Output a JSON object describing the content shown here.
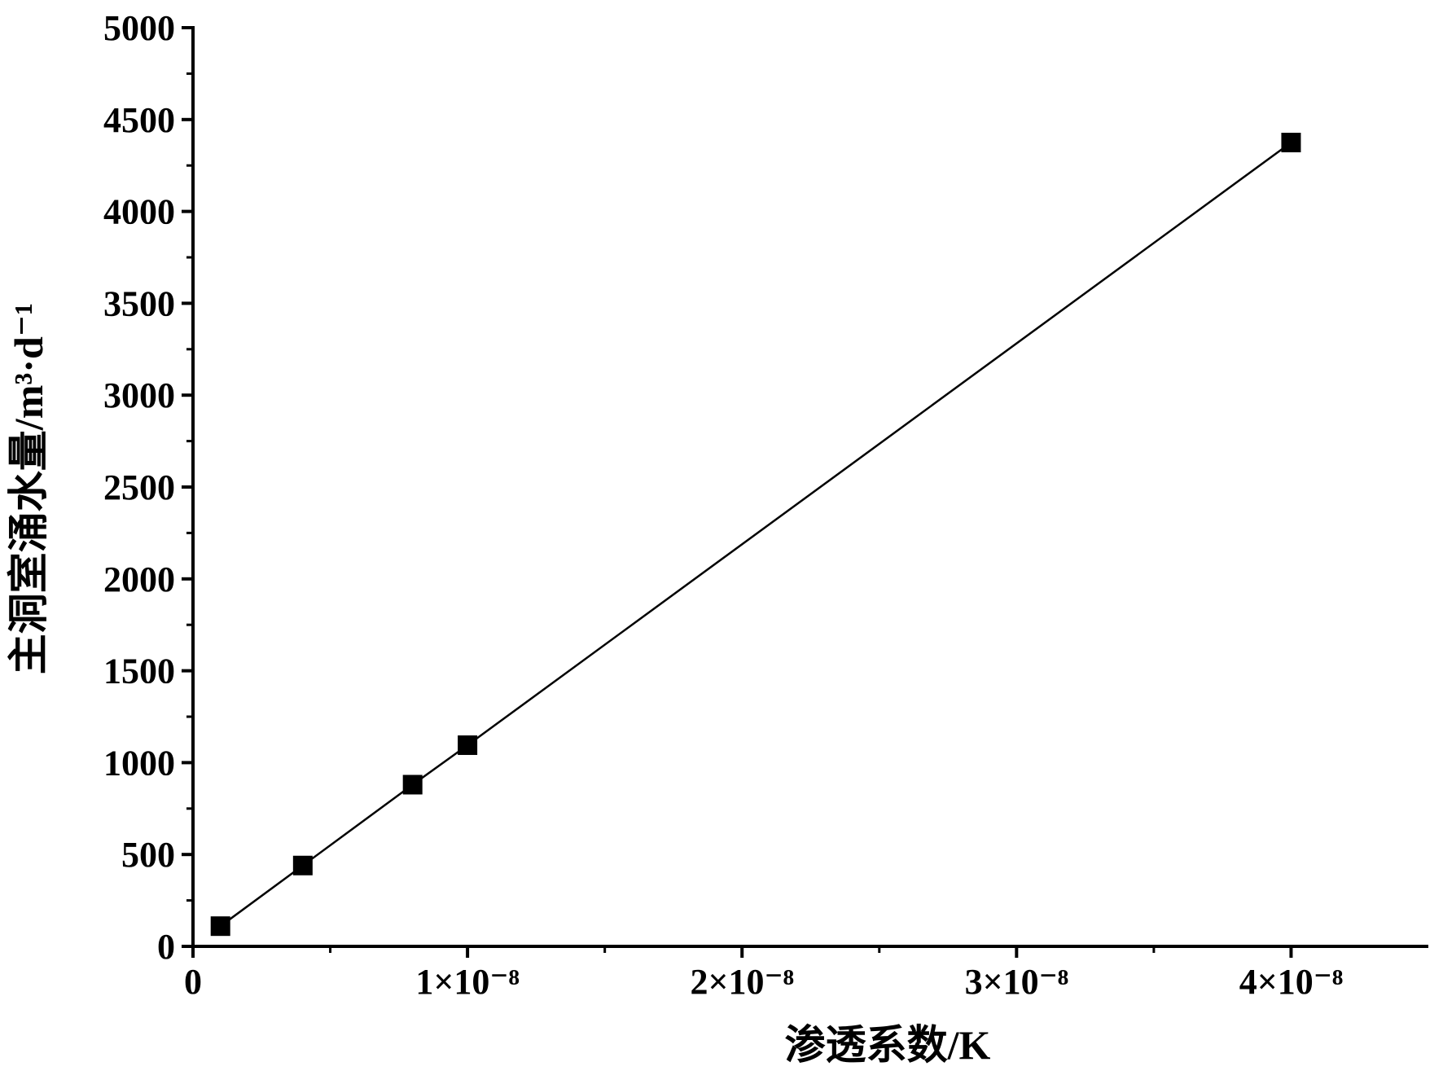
{
  "chart_data": {
    "type": "line",
    "x_label": "渗透系数/K",
    "y_label": "主洞室涌水量/m³·d⁻¹",
    "x": [
      1e-09,
      4e-09,
      8e-09,
      1e-08,
      4e-08
    ],
    "series": [
      {
        "color": "#000000",
        "values": [
          110,
          440,
          880,
          1095,
          4375
        ]
      }
    ],
    "xlim": [
      0,
      4.5e-08
    ],
    "xticks": [
      0,
      {
        "value": 1e-08,
        "label": "1×10⁻⁸"
      },
      {
        "value": 2e-08,
        "label": "2×10⁻⁸"
      },
      {
        "value": 3e-08,
        "label": "3×10⁻⁸"
      },
      {
        "value": 4e-08,
        "label": "4×10⁻⁸"
      }
    ],
    "ylim": [
      0,
      5000
    ],
    "yticks": [
      0,
      500,
      1000,
      1500,
      2000,
      2500,
      3000,
      3500,
      4000,
      4500,
      5000
    ],
    "grid": false
  }
}
